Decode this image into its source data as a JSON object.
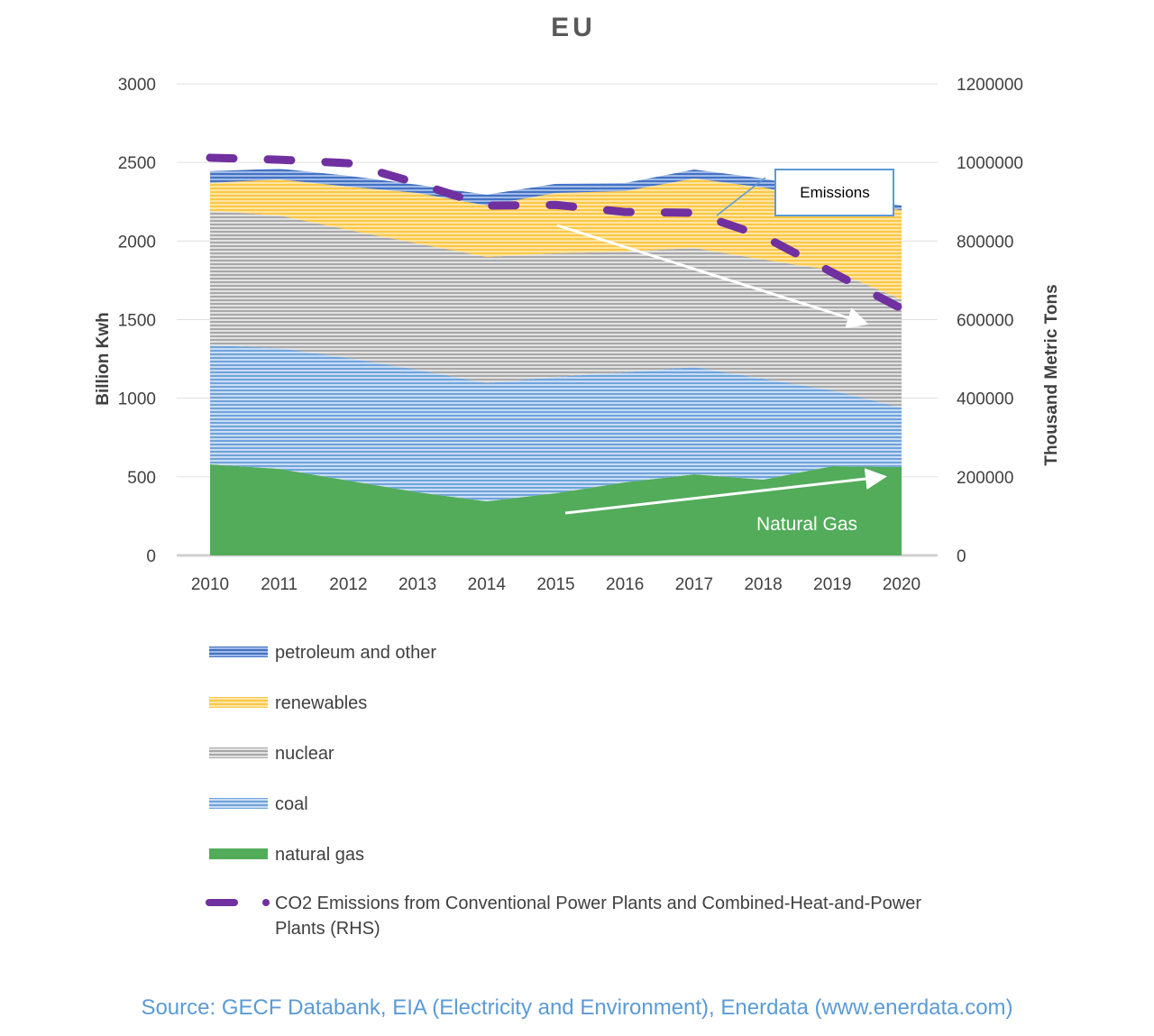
{
  "chart_data": {
    "type": "area",
    "stacked": true,
    "title": "EU",
    "ylabel": "Billion Kwh",
    "y2label": "Thousand Metric Tons",
    "ylim": [
      0,
      3000
    ],
    "y2lim": [
      0,
      1200000
    ],
    "yticks": [
      "0",
      "500",
      "1000",
      "1500",
      "2000",
      "2500",
      "3000"
    ],
    "y2ticks": [
      "0",
      "200000",
      "400000",
      "600000",
      "800000",
      "1000000",
      "1200000"
    ],
    "categories": [
      "2010",
      "2011",
      "2012",
      "2013",
      "2014",
      "2015",
      "2016",
      "2017",
      "2018",
      "2019",
      "2020"
    ],
    "grid": true,
    "legend_position": "bottom",
    "series": [
      {
        "name": "natural gas",
        "color": "#4ea72e",
        "values": [
          579,
          551,
          476,
          402,
          344,
          396,
          465,
          516,
          482,
          568,
          562
        ]
      },
      {
        "name": "coal",
        "color": "#6fa3dc",
        "values": [
          758,
          769,
          780,
          780,
          752,
          740,
          700,
          683,
          642,
          482,
          379
        ]
      },
      {
        "name": "nuclear",
        "color": "#a8a8a8",
        "values": [
          855,
          843,
          815,
          803,
          803,
          786,
          768,
          757,
          758,
          763,
          688
        ]
      },
      {
        "name": "renewables",
        "color": "#fcc745",
        "values": [
          178,
          229,
          275,
          321,
          327,
          384,
          385,
          442,
          458,
          447,
          568
        ]
      },
      {
        "name": "petroleum and other",
        "color": "#4472c4",
        "values": [
          74,
          69,
          69,
          52,
          69,
          58,
          51,
          57,
          58,
          52,
          29
        ]
      }
    ],
    "line_series": {
      "name": "CO2 Emissions from Conventional Power Plants and Combined-Heat-and-Power Plants (RHS)",
      "name_lines": [
        "CO2 Emissions from Conventional Power Plants and Combined-Heat-and-Power",
        "Plants (RHS)"
      ],
      "axis": "right",
      "style": "dashed",
      "color": "#7030a0",
      "values": [
        1012000,
        1007000,
        998000,
        947000,
        890000,
        892000,
        874000,
        872000,
        812000,
        720000,
        628000
      ]
    },
    "annotations": {
      "emissions_callout": "Emissions",
      "gas_label": "Natural Gas"
    },
    "legend_order": [
      "petroleum and other",
      "renewables",
      "nuclear",
      "coal",
      "natural gas"
    ]
  },
  "source": "Source: GECF Databank, EIA (Electricity and Environment), Enerdata (www.enerdata.com)"
}
